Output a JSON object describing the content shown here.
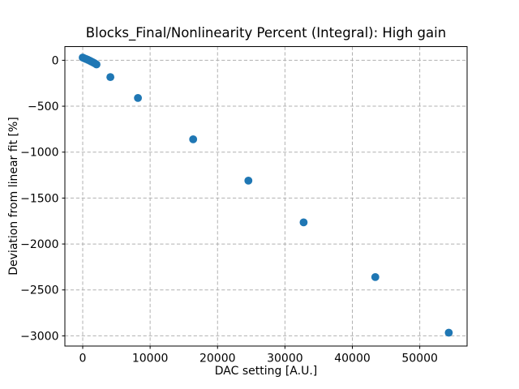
{
  "figure": {
    "background_color": "#ffffff",
    "text_color": "#000000",
    "grid_color": "#b0b0b0",
    "spine_color": "#000000",
    "marker_color": "#1f77b4"
  },
  "chart_data": {
    "type": "scatter",
    "title": "Blocks_Final/Nonlinearity Percent (Integral): High gain",
    "xlabel": "DAC setting [A.U.]",
    "ylabel": "Deviation from linear fit [%]",
    "legend": "none",
    "grid": "on, dashed",
    "xlim": [
      -2647,
      57022
    ],
    "ylim": [
      -3111,
      149
    ],
    "x_ticks": [
      0,
      10000,
      20000,
      30000,
      40000,
      50000
    ],
    "x_tick_labels": [
      "0",
      "10000",
      "20000",
      "30000",
      "40000",
      "50000"
    ],
    "y_ticks": [
      0,
      -500,
      -1000,
      -1500,
      -2000,
      -2500,
      -3000
    ],
    "y_tick_labels": [
      "0",
      "−500",
      "−1000",
      "−1500",
      "−2000",
      "−2500",
      "−3000"
    ],
    "series": [
      {
        "name": "nonlinearity-points",
        "marker": "circle",
        "color": "#1f77b4",
        "x": [
          0,
          256,
          512,
          768,
          1024,
          1280,
          1536,
          1792,
          2048,
          4096,
          8192,
          16384,
          24576,
          32768,
          43400,
          54300
        ],
        "y": [
          30,
          21,
          13,
          5,
          -4,
          -13,
          -23,
          -34,
          -45,
          -183,
          -410,
          -860,
          -1310,
          -1765,
          -2360,
          -2965
        ]
      }
    ]
  }
}
